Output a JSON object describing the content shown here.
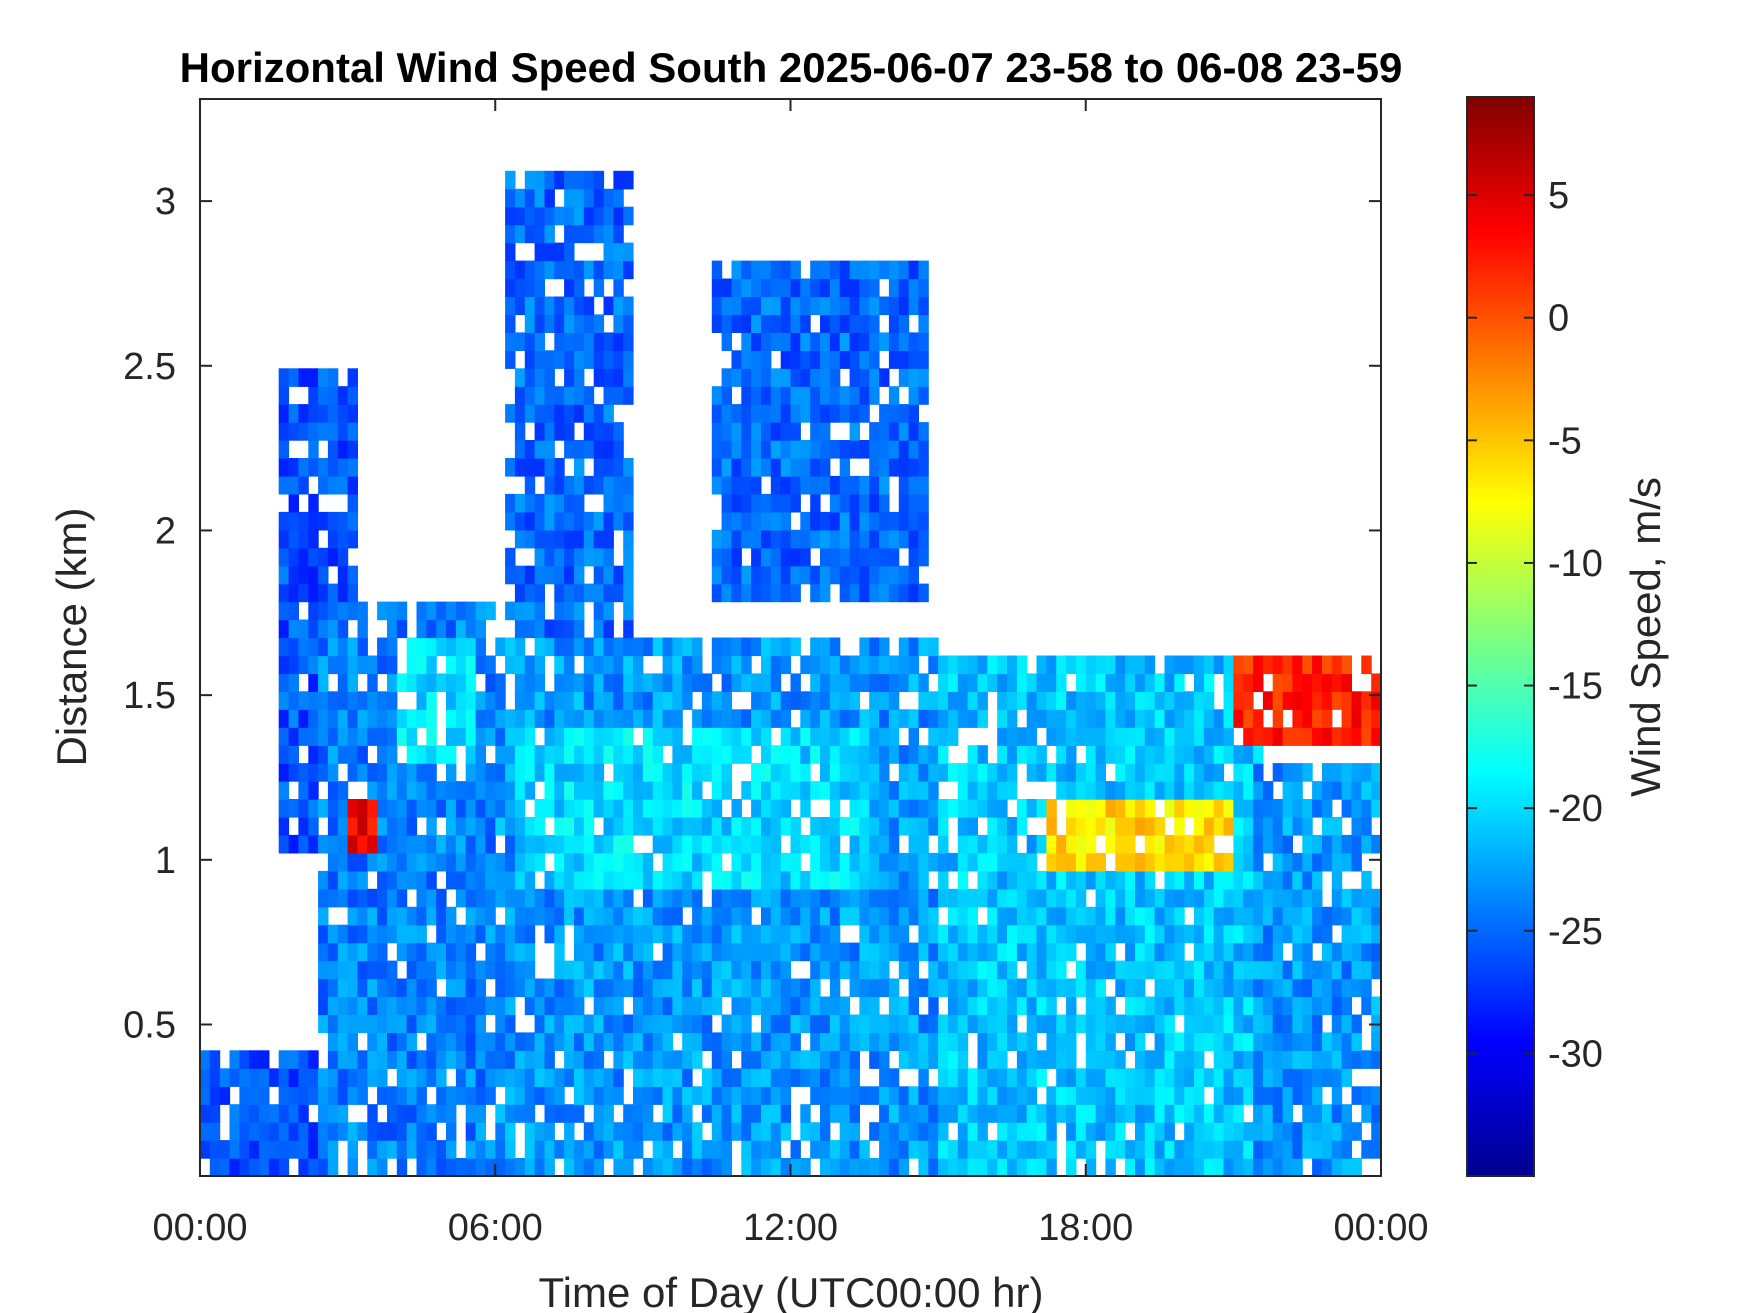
{
  "chart_data": {
    "type": "heatmap",
    "title": "Horizontal Wind Speed South 2025-06-07 23-58 to 06-08 23-59",
    "xlabel": "Time of Day (UTC00:00 hr)",
    "ylabel": "Distance (km)",
    "x_ticks": [
      {
        "value": 0,
        "label": "00:00"
      },
      {
        "value": 6,
        "label": "06:00"
      },
      {
        "value": 12,
        "label": "12:00"
      },
      {
        "value": 18,
        "label": "18:00"
      },
      {
        "value": 24,
        "label": "00:00"
      }
    ],
    "y_ticks": [
      {
        "value": 0.5,
        "label": "0.5"
      },
      {
        "value": 1,
        "label": "1"
      },
      {
        "value": 1.5,
        "label": "1.5"
      },
      {
        "value": 2,
        "label": "2"
      },
      {
        "value": 2.5,
        "label": "2.5"
      },
      {
        "value": 3,
        "label": "3"
      }
    ],
    "xlim": [
      0,
      24
    ],
    "ylim": [
      0.04,
      3.31
    ],
    "colorbar": {
      "label": "Wind Speed, m/s",
      "colormap": "jet",
      "range": [
        -35,
        9
      ],
      "ticks": [
        {
          "value": 5,
          "label": "5"
        },
        {
          "value": 0,
          "label": "0"
        },
        {
          "value": -5,
          "label": "-5"
        },
        {
          "value": -10,
          "label": "-10"
        },
        {
          "value": -15,
          "label": "-15"
        },
        {
          "value": -20,
          "label": "-20"
        },
        {
          "value": -25,
          "label": "-25"
        },
        {
          "value": -30,
          "label": "-30"
        }
      ]
    },
    "regions": [
      {
        "desc": "surface layer",
        "x": [
          0,
          2.5
        ],
        "y": [
          0.04,
          0.4
        ],
        "value": -26
      },
      {
        "desc": "early morning column",
        "x": [
          1.6,
          3.3
        ],
        "y": [
          1.0,
          2.5
        ],
        "value": -26
      },
      {
        "desc": "morning jet",
        "x": [
          2.5,
          6.0
        ],
        "y": [
          0.04,
          1.8
        ],
        "value": -24
      },
      {
        "desc": "jet core",
        "x": [
          4.0,
          5.5
        ],
        "y": [
          1.3,
          1.7
        ],
        "value": -20
      },
      {
        "desc": "daytime layer",
        "x": [
          6.0,
          15.0
        ],
        "y": [
          0.04,
          1.7
        ],
        "value": -23
      },
      {
        "desc": "daytime core",
        "x": [
          6.5,
          13.5
        ],
        "y": [
          0.9,
          1.4
        ],
        "value": -20
      },
      {
        "desc": "upper plume",
        "x": [
          6.2,
          8.8
        ],
        "y": [
          1.7,
          3.1
        ],
        "value": -25
      },
      {
        "desc": "midday upper plume",
        "x": [
          10.5,
          14.8
        ],
        "y": [
          1.8,
          2.8
        ],
        "value": -25
      },
      {
        "desc": "afternoon layer",
        "x": [
          15.0,
          21.5
        ],
        "y": [
          0.04,
          1.6
        ],
        "value": -21
      },
      {
        "desc": "afternoon warm band",
        "x": [
          17.2,
          21.0
        ],
        "y": [
          0.95,
          1.2
        ],
        "value": -6
      },
      {
        "desc": "evening layer",
        "x": [
          21.5,
          24.0
        ],
        "y": [
          0.04,
          1.3
        ],
        "value": -23
      },
      {
        "desc": "evening warm band",
        "x": [
          21.0,
          24.0
        ],
        "y": [
          1.35,
          1.6
        ],
        "value": 2
      },
      {
        "desc": "early warm patch",
        "x": [
          3.1,
          3.5
        ],
        "y": [
          1.0,
          1.2
        ],
        "value": 4
      }
    ]
  }
}
